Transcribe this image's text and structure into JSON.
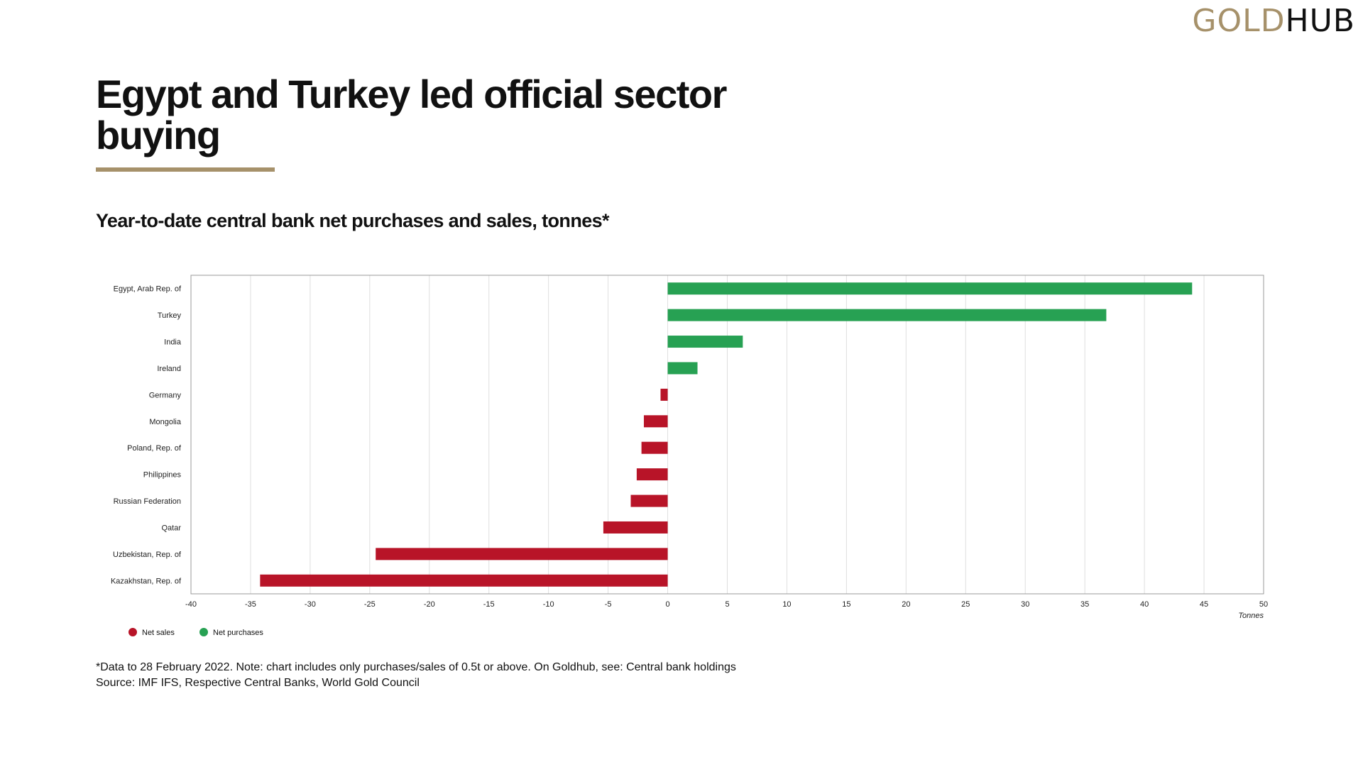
{
  "brand": {
    "logo_gold": "GOLD",
    "logo_hub": "HUB",
    "gold_color": "#a6916a"
  },
  "page": {
    "title": "Egypt and Turkey led official sector buying",
    "subtitle": "Year-to-date central bank net purchases and sales, tonnes*",
    "note": "*Data to 28 February 2022. Note: chart includes only purchases/sales of 0.5t or above. On Goldhub, see: Central bank holdings",
    "source": "Source: IMF IFS, Respective Central Banks, World Gold Council"
  },
  "chart_data": {
    "type": "bar",
    "orientation": "horizontal",
    "categories": [
      "Egypt, Arab Rep. of",
      "Turkey",
      "India",
      "Ireland",
      "Germany",
      "Mongolia",
      "Poland, Rep. of",
      "Philippines",
      "Russian Federation",
      "Qatar",
      "Uzbekistan, Rep. of",
      "Kazakhstan, Rep. of"
    ],
    "values": [
      44.0,
      36.8,
      6.3,
      2.5,
      -0.6,
      -2.0,
      -2.2,
      -2.6,
      -3.1,
      -5.4,
      -24.5,
      -34.2
    ],
    "xlabel": "Tonnes",
    "ylabel": "",
    "xlim": [
      -40,
      50
    ],
    "xticks": [
      -40,
      -35,
      -30,
      -25,
      -20,
      -15,
      -10,
      -5,
      0,
      5,
      10,
      15,
      20,
      25,
      30,
      35,
      40,
      45,
      50
    ],
    "grid": true,
    "legend": {
      "position": "bottom-left",
      "items": [
        {
          "name": "Net sales",
          "color": "#b81428"
        },
        {
          "name": "Net purchases",
          "color": "#27a153"
        }
      ]
    },
    "colors": {
      "negative": "#b81428",
      "positive": "#27a153"
    }
  }
}
